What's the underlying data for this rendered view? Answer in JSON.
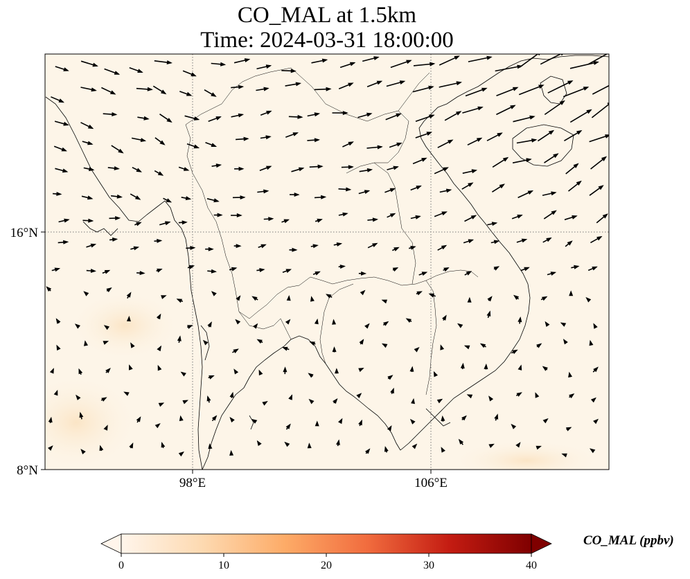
{
  "title": {
    "line1": "CO_MAL at 1.5km",
    "line2": "Time: 2024-03-31 18:00:00"
  },
  "map": {
    "lon_range": [
      93,
      112
    ],
    "lat_range": [
      8,
      22
    ],
    "x_ticks": [
      {
        "lon": 98,
        "label": "98°E"
      },
      {
        "lon": 106,
        "label": "106°E"
      }
    ],
    "y_ticks": [
      {
        "lat": 16,
        "label": "16°N"
      },
      {
        "lat": 8,
        "label": "8°N"
      }
    ],
    "gridlines": "dotted",
    "background_color": "#fdf5e8",
    "coastline_color": "#000000"
  },
  "colorbar": {
    "label": "CO_MAL (ppbv)",
    "min": 0,
    "max": 40,
    "ticks": [
      "0",
      "10",
      "20",
      "30",
      "40"
    ],
    "extend": "both",
    "colors": [
      "#fff5eb",
      "#fdd9b0",
      "#fdab67",
      "#f16c3e",
      "#c41c12",
      "#7f0000"
    ]
  }
}
